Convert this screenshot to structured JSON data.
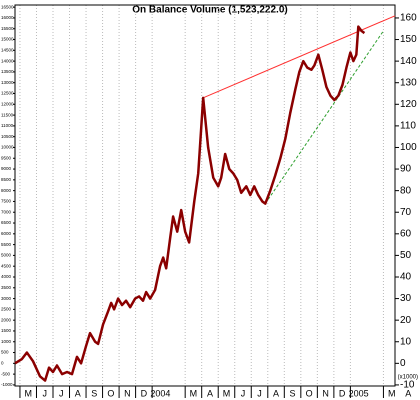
{
  "chart_data": {
    "type": "line",
    "title": "On Balance Volume (1,523,222.0)",
    "x": [
      -0.3,
      0.12,
      0.42,
      0.79,
      1.21,
      1.52,
      1.76,
      2.0,
      2.24,
      2.55,
      2.85,
      3.15,
      3.45,
      3.7,
      4.0,
      4.24,
      4.55,
      4.73,
      5.03,
      5.33,
      5.52,
      5.7,
      5.94,
      6.18,
      6.42,
      6.67,
      6.97,
      7.21,
      7.45,
      7.64,
      7.88,
      8.18,
      8.48,
      8.67,
      8.85,
      9.09,
      9.27,
      9.52,
      9.76,
      10.0,
      10.24,
      10.55,
      10.79,
      11.09,
      11.39,
      11.7,
      12.0,
      12.18,
      12.42,
      12.67,
      12.91,
      13.15,
      13.39,
      13.7,
      13.94,
      14.18,
      14.42,
      14.67,
      14.85,
      15.15,
      15.45,
      15.76,
      16.06,
      16.36,
      16.67,
      16.91,
      17.15,
      17.39,
      17.64,
      17.82,
      18.06,
      18.3,
      18.55,
      18.79,
      19.03,
      19.27,
      19.52,
      19.76,
      20.0,
      20.18,
      20.36,
      20.48,
      20.67,
      20.85
    ],
    "series": [
      {
        "color": "#8b0000",
        "values": [
          0,
          2,
          5,
          1,
          -6,
          -8,
          -2,
          -4,
          -1,
          -5,
          -4,
          -5,
          3,
          0,
          8,
          14,
          10,
          9,
          18,
          24,
          28,
          25,
          30,
          27,
          29,
          26,
          30,
          31,
          29,
          33,
          30,
          34,
          45,
          49,
          44,
          58,
          68,
          61,
          71,
          61,
          56,
          75,
          88,
          123,
          100,
          86,
          82,
          86,
          97,
          90,
          88,
          85,
          79,
          82,
          78,
          82,
          78,
          75,
          74,
          80,
          87,
          95,
          104,
          116,
          127,
          135,
          140,
          137,
          136,
          138,
          143,
          136,
          128,
          124,
          122,
          124,
          129,
          137,
          144,
          140,
          143,
          156,
          154,
          153
        ]
      }
    ],
    "trendlines": [
      {
        "color": "#ff3030",
        "x": [
          11.09,
          22.7
        ],
        "y": [
          123,
          161
        ]
      },
      {
        "color": "#30a030",
        "x": [
          14.85,
          22.0
        ],
        "y": [
          74,
          154
        ]
      }
    ],
    "xlim": [
      -0.3,
      22.7
    ],
    "xticks": [
      {
        "value": 0,
        "label": "M"
      },
      {
        "value": 1,
        "label": "J"
      },
      {
        "value": 2,
        "label": "J"
      },
      {
        "value": 3,
        "label": "A"
      },
      {
        "value": 4,
        "label": "S"
      },
      {
        "value": 5,
        "label": "O"
      },
      {
        "value": 6,
        "label": "N"
      },
      {
        "value": 7,
        "label": "D"
      },
      {
        "value": 8,
        "label": "2004"
      },
      {
        "value": 10,
        "label": "M"
      },
      {
        "value": 11,
        "label": "A"
      },
      {
        "value": 12,
        "label": "M"
      },
      {
        "value": 13,
        "label": "J"
      },
      {
        "value": 14,
        "label": "J"
      },
      {
        "value": 15,
        "label": "A"
      },
      {
        "value": 16,
        "label": "S"
      },
      {
        "value": 17,
        "label": "O"
      },
      {
        "value": 18,
        "label": "N"
      },
      {
        "value": 19,
        "label": "D"
      },
      {
        "value": 20,
        "label": "2005"
      },
      {
        "value": 22,
        "label": "M"
      },
      {
        "value": 23,
        "label": "A"
      }
    ],
    "ylim": [
      -10.5,
      166
    ],
    "yticks": [
      160,
      150,
      140,
      130,
      120,
      110,
      100,
      90,
      80,
      70,
      60,
      50,
      40,
      30,
      20,
      10,
      0,
      -10
    ],
    "y2lim": [
      -1050,
      16600
    ],
    "y2ticks": [
      16500,
      16000,
      15500,
      15000,
      14500,
      14000,
      13500,
      13000,
      12500,
      12000,
      11500,
      11000,
      10500,
      10000,
      9500,
      9000,
      8500,
      8000,
      7500,
      7000,
      6500,
      6000,
      5500,
      5000,
      4500,
      4000,
      3500,
      3000,
      2500,
      2000,
      1500,
      1000,
      500,
      0,
      -500,
      -1000
    ],
    "y_unit_label": "(x1000)",
    "grid": true
  }
}
